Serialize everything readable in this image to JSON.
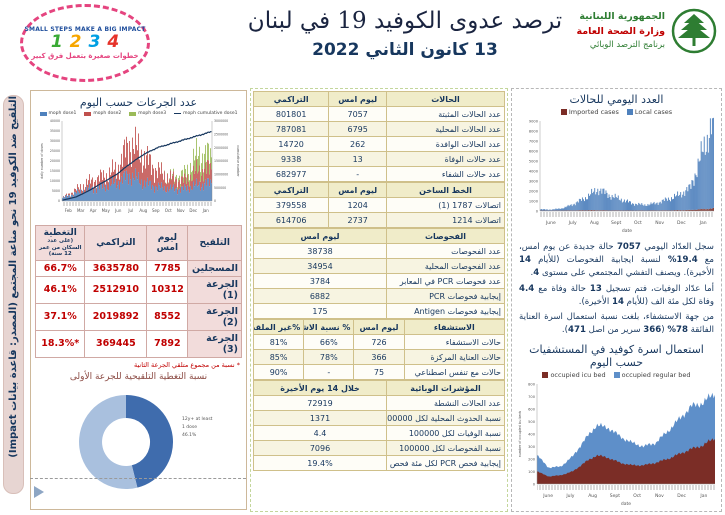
{
  "header": {
    "title": "ترصد عدوى الكوفيد 19 في لبنان",
    "date": "13 كانون الثاني 2022",
    "ministry_logo": {
      "line1": "الجمهورية اللبنانية",
      "line2": "وزارة الصحة العامة",
      "line3": "برنامج الترصد الوبائي"
    },
    "campaign_logo": {
      "top": "SMALL STEPS MAKE A BIG IMPACT",
      "numbers": [
        "1",
        "2",
        "3",
        "4"
      ],
      "bottom": "خطوات صغيرة بتعمل فرق كبير"
    }
  },
  "ribbon": {
    "text": "التلقيح ضد الكوفيد 19  نحو مناعة المجتمع (المصدر: قاعدة بيانات Impact)"
  },
  "left_panel": {
    "doses_chart_title": "عدد الجرعات حسب اليوم",
    "vaccination_table": {
      "headers": {
        "name": "التلقيح",
        "yesterday": "ليوم امس",
        "cumulative": "التراكمي",
        "coverage": "التغطية",
        "coverage_note": "(على عدد السكان من عمر 12 سنة)"
      },
      "rows": [
        {
          "label": "المسجلين",
          "yesterday": "7785",
          "cumulative": "3635780",
          "coverage": "66.7%"
        },
        {
          "label": "الجرعة (1)",
          "yesterday": "10312",
          "cumulative": "2512910",
          "coverage": "46.1%"
        },
        {
          "label": "الجرعة (2)",
          "yesterday": "8552",
          "cumulative": "2019892",
          "coverage": "37.1%"
        },
        {
          "label": "الجرعة (3)",
          "yesterday": "7892",
          "cumulative": "369445",
          "coverage": "*18.3%"
        }
      ]
    },
    "footnote": "* نسبة من مجموع متلقي الجرعة الثانية",
    "donut_title": "نسبة التغطية التلقيحية للجرعة الأولى"
  },
  "middle_panel": {
    "cases": {
      "title": "الحالات",
      "col_yesterday": "ليوم امس",
      "col_cumulative": "التراكمي",
      "rows": [
        {
          "label": "عدد الحالات المثبتة",
          "yesterday": "7057",
          "cumulative": "801801"
        },
        {
          "label": "عدد الحالات المحلية",
          "yesterday": "6795",
          "cumulative": "787081"
        },
        {
          "label": "عدد الحالات الوافدة",
          "yesterday": "262",
          "cumulative": "14720"
        },
        {
          "label": "عدد حالات الوفاة",
          "yesterday": "13",
          "cumulative": "9338"
        },
        {
          "label": "عدد حالات الشفاء",
          "yesterday": "-",
          "cumulative": "682977"
        }
      ]
    },
    "hotline": {
      "title": "الخط الساخن",
      "col_yesterday": "ليوم امس",
      "col_cumulative": "التراكمي",
      "rows": [
        {
          "label": "اتصالات 1787 (1)",
          "yesterday": "1204",
          "cumulative": "379558"
        },
        {
          "label": "اتصالات 1214",
          "yesterday": "2737",
          "cumulative": "614706"
        }
      ]
    },
    "tests": {
      "title": "الفحوصات",
      "col_value": "ليوم امس",
      "rows": [
        {
          "label": "عدد الفحوصات",
          "value": "38738"
        },
        {
          "label": "عدد الفحوصات المحلية",
          "value": "34954"
        },
        {
          "label": "عدد فحوصات PCR في المعابر",
          "value": "3784"
        },
        {
          "label": "إيجابية فحوصات PCR",
          "value": "6882"
        },
        {
          "label": "إيجابية فحوصات Antigen",
          "value": "175"
        }
      ]
    },
    "hospitalization": {
      "title": "الاستشفاء",
      "col_yesterday": "ليوم امس",
      "col_occupancy": "% نسبة الاشغال",
      "col_unvaccinated": "%غير الملقحين",
      "rows": [
        {
          "label": "حالات الاستشفاء",
          "yesterday": "726",
          "occupancy": "66%",
          "unvaccinated": "81%"
        },
        {
          "label": "حالات العناية المركزة",
          "yesterday": "366",
          "occupancy": "78%",
          "unvaccinated": "85%"
        },
        {
          "label": "حالات مع تنفس اصطناعي",
          "yesterday": "75",
          "occupancy": "-",
          "unvaccinated": "90%"
        }
      ]
    },
    "indicators": {
      "title": "المؤشرات الوبائية",
      "col_value": "خلال 14 يوم الأخيرة",
      "rows": [
        {
          "label": "عدد الحالات النشطة",
          "value": "72919"
        },
        {
          "label": "نسبة الحدوث المحلية لكل 100000",
          "value": "1371"
        },
        {
          "label": "نسبة الوفيات لكل 100000",
          "value": "4.4"
        },
        {
          "label": "نسبة الفحوصات لكل 100000",
          "value": "7096"
        },
        {
          "label": "إيجابية فحص PCR لكل مئة فحص",
          "value": "19.4%"
        }
      ]
    }
  },
  "right_panel": {
    "daily_cases_title": "العدد اليومي للحالات",
    "summary": {
      "p1": [
        {
          "t": "سجل العدّاد اليومي "
        },
        {
          "t": "7057",
          "b": 1
        },
        {
          "t": " حالة جديدة عن يوم امس، مع "
        },
        {
          "t": "19.4%",
          "b": 1
        },
        {
          "t": " لنسبة ايجابية الفحوصات (للأيام "
        },
        {
          "t": "14",
          "b": 1
        },
        {
          "t": " الأخيرة). ويصنف التفشي المجتمعي على مستوى "
        },
        {
          "t": "4",
          "b": 1
        },
        {
          "t": "."
        }
      ],
      "p2": [
        {
          "t": "أما عدّاد الوفيات، فتم تسجيل "
        },
        {
          "t": "13",
          "b": 1
        },
        {
          "t": " حالة وفاة مع "
        },
        {
          "t": "4.4",
          "b": 1
        },
        {
          "t": " وفاة لكل مئة الف (للأيام "
        },
        {
          "t": "14",
          "b": 1
        },
        {
          "t": " الأخيرة)."
        }
      ],
      "p3": [
        {
          "t": "من جهة الاستشفاء، بلغت نسبة استعمال اسرة العناية الفائقة "
        },
        {
          "t": "78%",
          "b": 1
        },
        {
          "t": " ("
        },
        {
          "t": "366",
          "b": 1
        },
        {
          "t": " سرير من اصل "
        },
        {
          "t": "471",
          "b": 1
        },
        {
          "t": ")."
        }
      ]
    },
    "beds_chart_title": "استعمال اسرة كوفيد في المستشفيات حسب اليوم"
  },
  "chart_data": [
    {
      "id": "doses",
      "type": "bar",
      "title": "عدد الجرعات حسب اليوم",
      "legend": [
        "moph dose1",
        "moph dose2",
        "moph dose3",
        "moph cumulative dose1"
      ],
      "legend_colors": [
        "#4f81bd",
        "#c0504d",
        "#9bbb59",
        "#17375e"
      ],
      "ylabel_left": "daily number of doses",
      "ylabel_right": "cumulative number",
      "ylim_left": [
        0,
        40000
      ],
      "ytick_left": 5000,
      "ylim_right": [
        0,
        3000000
      ],
      "ytick_right": 500000,
      "months": [
        "Feb",
        "Mar",
        "Apr",
        "May",
        "Jun",
        "Jul",
        "Aug",
        "Sep",
        "Oct",
        "Nov",
        "Dec",
        "Jan"
      ],
      "series": {
        "dose1": [
          1500,
          4000,
          6000,
          7000,
          9000,
          13000,
          9000,
          7000,
          6000,
          6000,
          8000,
          9000
        ],
        "dose2": [
          100,
          1500,
          3500,
          5000,
          6500,
          16000,
          13000,
          8000,
          5000,
          4000,
          7000,
          7000
        ],
        "dose3": [
          0,
          0,
          0,
          0,
          0,
          0,
          0,
          0,
          500,
          3000,
          8000,
          6000
        ],
        "cumulative": [
          30000,
          150000,
          400000,
          700000,
          1000000,
          1400000,
          1750000,
          2000000,
          2150000,
          2300000,
          2450000,
          2600000
        ]
      }
    },
    {
      "id": "daily_cases",
      "type": "bar",
      "title": "العدد اليومي للحالات",
      "legend": [
        "Imported cases",
        "Local cases"
      ],
      "legend_colors": [
        "#7b2d26",
        "#4f81bd"
      ],
      "xlabel": "date",
      "ylim": [
        0,
        9000
      ],
      "ytick": 1000,
      "months": [
        "June",
        "July",
        "Aug",
        "Sept",
        "Oct",
        "Nov",
        "Dec",
        "Jan"
      ],
      "series": {
        "imported": [
          40,
          40,
          50,
          60,
          80,
          80,
          60,
          60,
          50,
          50,
          60,
          60,
          80,
          100,
          180,
          250
        ],
        "local": [
          120,
          100,
          250,
          700,
          1300,
          2100,
          1500,
          1100,
          700,
          550,
          700,
          1100,
          1500,
          2200,
          5500,
          8800
        ]
      }
    },
    {
      "id": "beds",
      "type": "area",
      "title": "استعمال اسرة كوفيد في المستشفيات حسب اليوم",
      "legend": [
        "occupied icu bed",
        "occupied regular bed"
      ],
      "legend_colors": [
        "#7b2d26",
        "#5e8fc9"
      ],
      "ylabel": "number of occupied icu beds",
      "xlabel": "date",
      "ylim": [
        0,
        800
      ],
      "ytick": 100,
      "months": [
        "June",
        "July",
        "Aug",
        "Sept",
        "Oct",
        "Nov",
        "Dec",
        "Jan"
      ],
      "series": {
        "icu": [
          100,
          60,
          70,
          100,
          170,
          230,
          210,
          170,
          150,
          150,
          170,
          200,
          240,
          280,
          310,
          370
        ],
        "regular": [
          130,
          70,
          70,
          120,
          180,
          240,
          240,
          210,
          180,
          150,
          160,
          220,
          280,
          340,
          340,
          360
        ]
      }
    },
    {
      "id": "coverage_donut",
      "type": "pie",
      "title": "نسبة التغطية التلقيحية للجرعة الأولى",
      "label_lines": [
        "12y+ at least",
        "1 dose",
        "46.1%"
      ],
      "segments": [
        {
          "name": "12y+ at least 1 dose",
          "value": 46.1
        },
        {
          "name": "remaining",
          "value": 53.9
        }
      ],
      "colors": [
        "#3f6cad",
        "#a9c0de"
      ]
    }
  ]
}
